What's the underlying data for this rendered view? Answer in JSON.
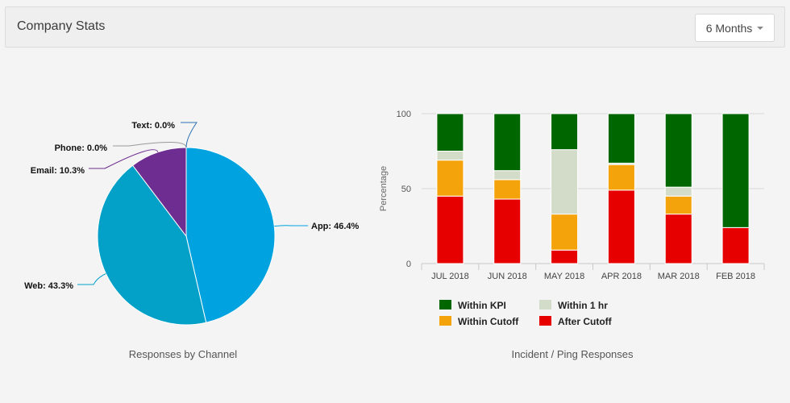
{
  "header": {
    "title": "Company Stats",
    "period_label": "6 Months"
  },
  "chart_data": [
    {
      "type": "pie",
      "title": "Responses by Channel",
      "slices": [
        {
          "label": "App",
          "value": 46.4,
          "display": "App: 46.4%",
          "color": "#00a3e0"
        },
        {
          "label": "Web",
          "value": 43.3,
          "display": "Web: 43.3%",
          "color": "#03a0c8"
        },
        {
          "label": "Email",
          "value": 10.3,
          "display": "Email: 10.3%",
          "color": "#6e2d91"
        },
        {
          "label": "Phone",
          "value": 0.0,
          "display": "Phone: 0.0%",
          "color": "#9a9a9a"
        },
        {
          "label": "Text",
          "value": 0.0,
          "display": "Text: 0.0%",
          "color": "#2c6fb0"
        }
      ]
    },
    {
      "type": "bar",
      "stacked": true,
      "title": "Incident / Ping Responses",
      "ylabel": "Percentage",
      "xlabel": "",
      "ylim": [
        0,
        100
      ],
      "yticks": [
        0,
        50,
        100
      ],
      "categories": [
        "JUL 2018",
        "JUN 2018",
        "MAY 2018",
        "APR 2018",
        "MAR 2018",
        "FEB 2018"
      ],
      "series": [
        {
          "name": "After Cutoff",
          "color": "#e60000",
          "values": [
            45,
            43,
            9,
            49,
            33,
            24
          ]
        },
        {
          "name": "Within Cutoff",
          "color": "#f5a30a",
          "values": [
            24,
            13,
            24,
            17,
            12,
            0
          ]
        },
        {
          "name": "Within 1 hr",
          "color": "#d3dcc8",
          "values": [
            6,
            6,
            43,
            1,
            6,
            0
          ]
        },
        {
          "name": "Within KPI",
          "color": "#006600",
          "values": [
            25,
            38,
            24,
            33,
            49,
            76
          ]
        }
      ],
      "legend": [
        {
          "name": "Within KPI",
          "color": "#006600"
        },
        {
          "name": "Within 1 hr",
          "color": "#d3dcc8"
        },
        {
          "name": "Within Cutoff",
          "color": "#f5a30a"
        },
        {
          "name": "After Cutoff",
          "color": "#e60000"
        }
      ]
    }
  ]
}
